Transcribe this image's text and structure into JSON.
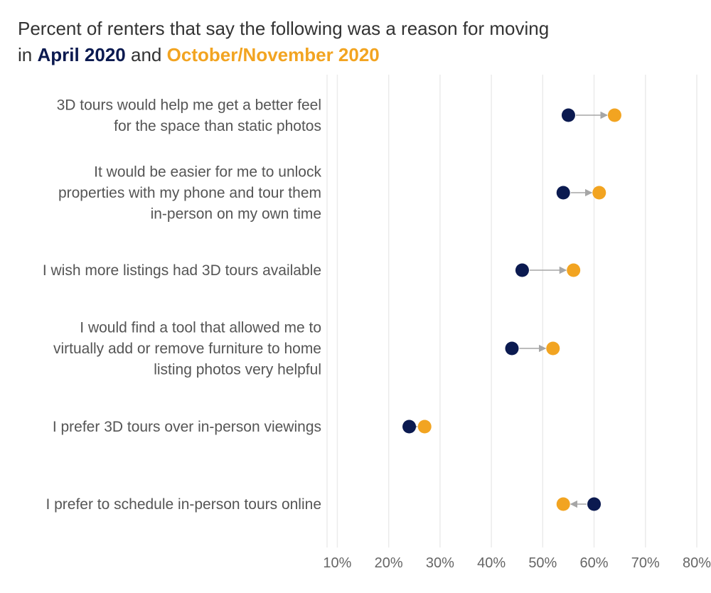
{
  "title": {
    "line1": "Percent of renters that say the following was a reason for moving",
    "prefix": "in",
    "period1": "April 2020",
    "conjunction": "and",
    "period2": "October/November 2020"
  },
  "colors": {
    "april": "#0b1a50",
    "octnov": "#f2a421",
    "arrow": "#a6a6a6",
    "grid": "#ebebeb"
  },
  "chart_data": {
    "type": "scatter",
    "subtype": "dumbbell",
    "title": "Percent of renters that say the following was a reason for moving in April 2020 and October/November 2020",
    "xlim": [
      8,
      80
    ],
    "x_ticks": [
      "10%",
      "20%",
      "30%",
      "40%",
      "50%",
      "60%",
      "70%",
      "80%"
    ],
    "x_tick_values": [
      10,
      20,
      30,
      40,
      50,
      60,
      70,
      80
    ],
    "grid": true,
    "categories": [
      [
        "3D tours would help me get a better feel",
        "for the space than static photos"
      ],
      [
        "It would be easier for me to unlock",
        "properties with my phone and tour them",
        "in-person on my own time"
      ],
      [
        "I wish more listings had 3D tours available"
      ],
      [
        "I would find a tool that allowed me to",
        "virtually add or remove furniture to home",
        "listing photos very helpful"
      ],
      [
        "I prefer 3D tours over in-person viewings"
      ],
      [
        "I prefer to schedule in-person tours online"
      ]
    ],
    "series": [
      {
        "name": "April 2020",
        "values": [
          55,
          54,
          46,
          44,
          24,
          60
        ]
      },
      {
        "name": "October/November 2020",
        "values": [
          64,
          61,
          56,
          52,
          27,
          54
        ]
      }
    ]
  }
}
